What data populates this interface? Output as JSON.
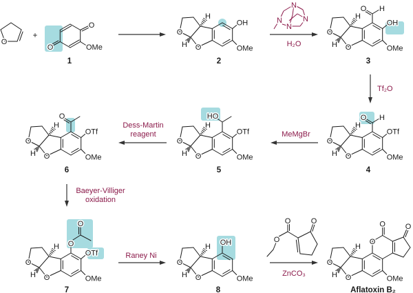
{
  "atoms": {
    "O": "O",
    "H": "H",
    "OH": "OH",
    "HO": "HO",
    "OMe": "OMe",
    "OTf": "OTf",
    "N": "N"
  },
  "compounds": {
    "c1": "1",
    "c2": "2",
    "c3": "3",
    "c4": "4",
    "c5": "5",
    "c6": "6",
    "c7": "7",
    "c8": "8",
    "final": "Aflatoxin B₂"
  },
  "reagents": {
    "step2_conditions": "H₂O",
    "step2_reagent_icon": "hexamethylenetetramine-structure",
    "step3": "Tf₂O",
    "step4": "MeMgBr",
    "step5_line1": "Dess-Martin",
    "step5_line2": "reagent",
    "step6_line1": "Baeyer-Villiger",
    "step6_line2": "oxidation",
    "step7": "Raney Ni",
    "step8_conditions": "ZnCO₃",
    "step8_reagent_icon": "ethyl-2-oxocyclopentene-carboxylate-structure"
  },
  "plus": "+",
  "colors": {
    "reagent_text": "#8b1a4a",
    "highlight": "#a6dbe0",
    "bonds": "#1a1a1a"
  }
}
